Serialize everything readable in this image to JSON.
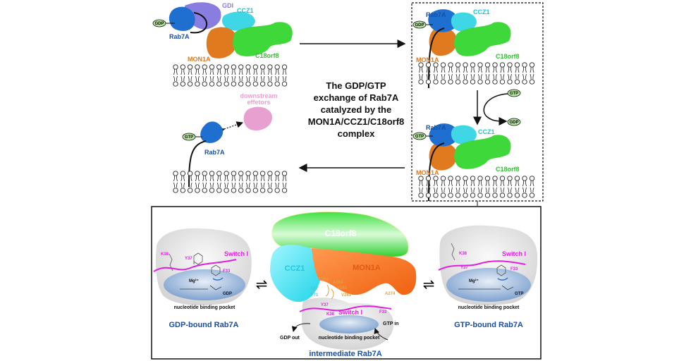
{
  "colors": {
    "rab7a": "#1e6fd0",
    "gdi": "#8a7de0",
    "ccz1": "#3fd6e6",
    "mon1a": "#e07a1e",
    "c18orf8": "#3fd83a",
    "effectors": "#e8a0d0",
    "switch": "#e020e0",
    "nucleotide": "#9ab5d8",
    "gdp_gtp_badge": "#b8e6a0"
  },
  "top": {
    "state1": {
      "gdp": "GDP",
      "gdi": "GDI",
      "rab7a": "Rab7A",
      "ccz1": "CCZ1",
      "mon1a": "MON1A",
      "c18orf8": "C18orf8"
    },
    "center_text": [
      "The GDP/GTP",
      "exchange of Rab7A",
      "catalyzed by the",
      "MON1A/CCZ1/C18orf8",
      "complex"
    ],
    "state_final": {
      "gtp": "GTP",
      "rab7a": "Rab7A",
      "effectors": [
        "downstream",
        "effetors"
      ]
    },
    "box_upper": {
      "rab7a": "Rab7A",
      "gdp": "GDP",
      "ccz1": "CCZ1",
      "mon1a": "MON1A",
      "c18orf8": "C18orf8"
    },
    "exchange": {
      "gtp_in": "GTP",
      "gdp_out": "GDP"
    },
    "box_lower": {
      "rab7a": "Rab7A",
      "gtp": "GTP",
      "ccz1": "CCZ1",
      "mon1a": "MON1A",
      "c18orf8": "C18orf8"
    }
  },
  "bottom": {
    "left": {
      "k38": "K38",
      "y37": "Y37",
      "switch": "Switch I",
      "f33": "F33",
      "mg": "Mg²⁺",
      "nucleotide": "GDP",
      "pocket": "nucleotide binding pocket",
      "title": "GDP-bound Rab7A"
    },
    "middle": {
      "c18orf8": "C18orf8",
      "ccz1": "CCZ1",
      "mon1a": "MON1A",
      "residues": [
        "L285",
        "A284",
        "A67",
        "V283",
        "F71",
        "V281",
        "A274"
      ],
      "y37": "Y37",
      "k38": "K38",
      "switch": "Switch I",
      "f33": "F33",
      "gdp_out": "GDP out",
      "gtp_in": "GTP in",
      "pocket": "nucleotide binding pocket",
      "title": "intermediate Rab7A"
    },
    "right": {
      "k38": "K38",
      "y37": "Y37",
      "switch": "Switch I",
      "f33": "F33",
      "mg": "Mg²⁺",
      "nucleotide": "GTP",
      "pocket": "nucleotide binding pocket",
      "title": "GTP-bound Rab7A"
    },
    "equilibrium_symbol": "⇌"
  }
}
